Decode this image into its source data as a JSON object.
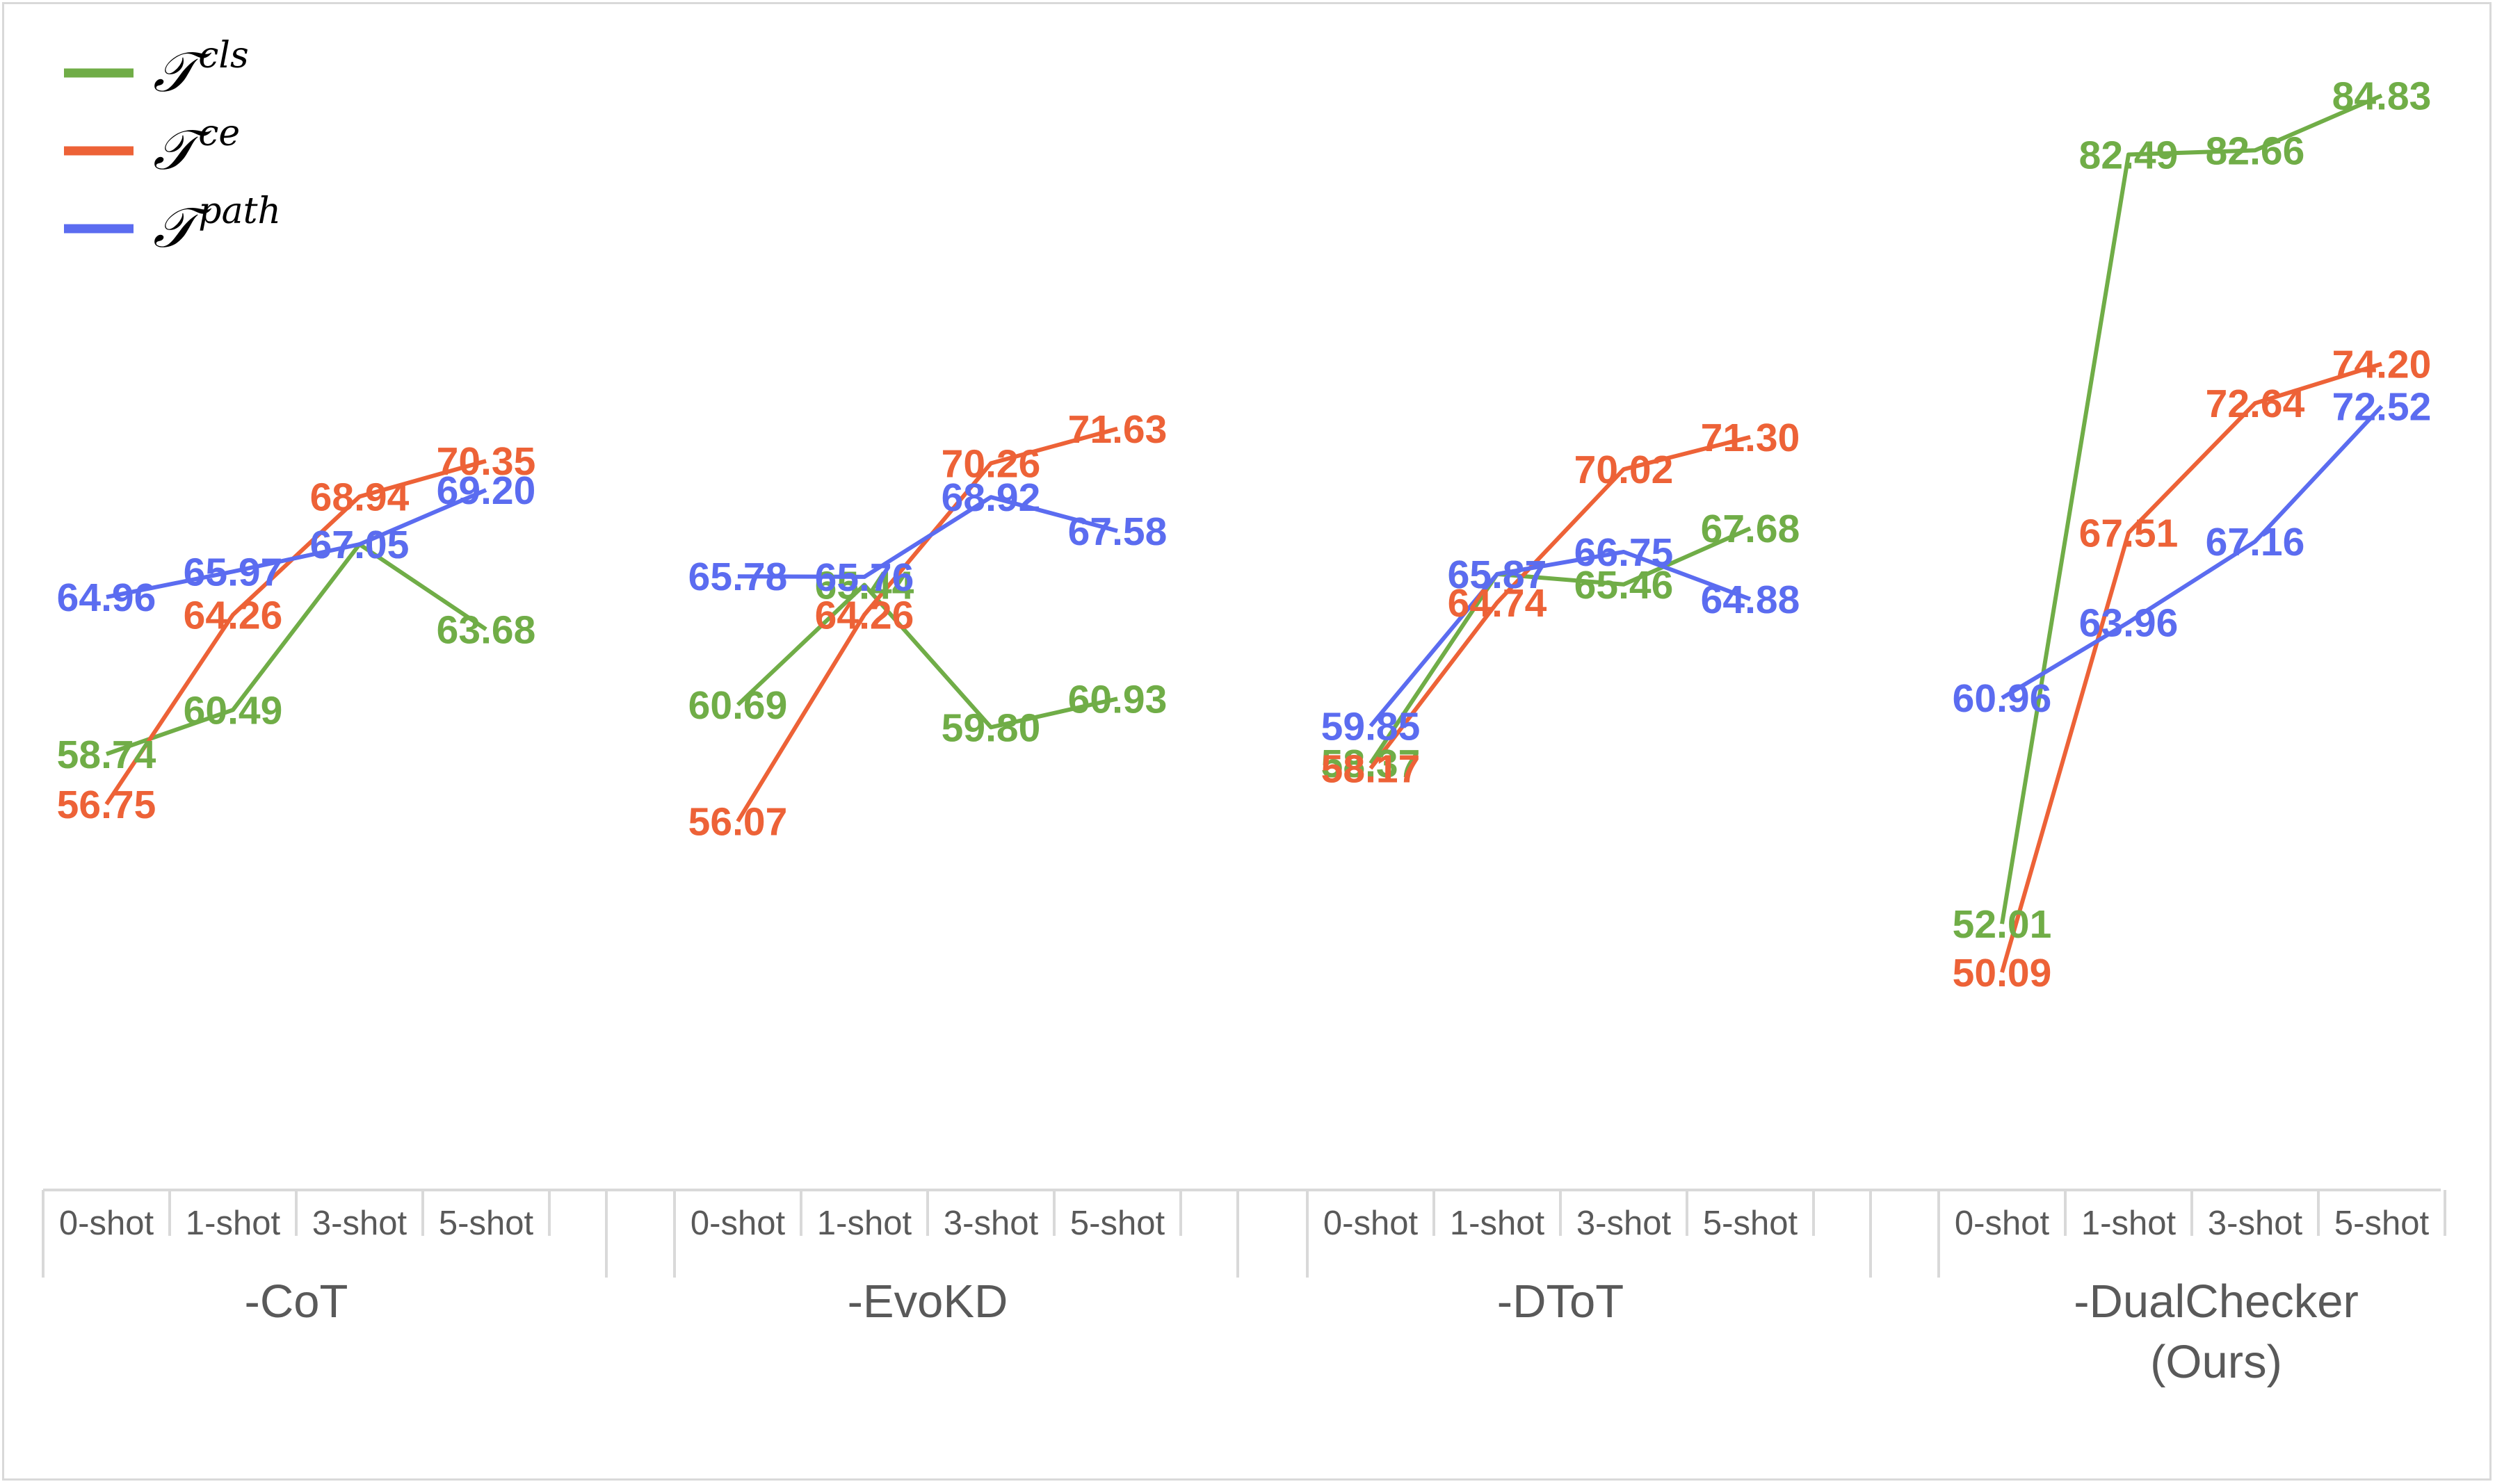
{
  "chart_data": {
    "type": "line",
    "title": "",
    "xlabel": "",
    "ylabel": "",
    "ylim": [
      44,
      86
    ],
    "grid": false,
    "legend_position": "top-left",
    "groups": [
      {
        "label": "-CoT",
        "categories": [
          "0-shot",
          "1-shot",
          "3-shot",
          "5-shot"
        ]
      },
      {
        "label": "-EvoKD",
        "categories": [
          "0-shot",
          "1-shot",
          "3-shot",
          "5-shot"
        ]
      },
      {
        "label": "-DToT",
        "categories": [
          "0-shot",
          "1-shot",
          "3-shot",
          "5-shot"
        ]
      },
      {
        "label": "-DualChecker\n(Ours)",
        "categories": [
          "0-shot",
          "1-shot",
          "3-shot",
          "5-shot"
        ]
      }
    ],
    "series": [
      {
        "name": "𝒯",
        "sup": "cls",
        "color": "#70ad47",
        "values": [
          [
            58.74,
            60.49,
            67.05,
            63.68
          ],
          [
            60.69,
            65.44,
            59.8,
            60.93
          ],
          [
            58.37,
            65.87,
            65.46,
            67.68
          ],
          [
            52.01,
            82.49,
            82.66,
            84.83
          ]
        ],
        "labels": [
          [
            "58.74",
            "60.49",
            "67.05",
            "63.68"
          ],
          [
            "60.69",
            "65.44",
            "59.80",
            "60.93"
          ],
          [
            "58.37",
            "65.87",
            "65.46",
            "67.68"
          ],
          [
            "52.01",
            "82.49",
            "82.66",
            "84.83"
          ]
        ]
      },
      {
        "name": "𝒯",
        "sup": "ce",
        "color": "#ed6237",
        "values": [
          [
            56.75,
            64.26,
            68.94,
            70.35
          ],
          [
            56.07,
            64.26,
            70.26,
            71.63
          ],
          [
            58.17,
            64.74,
            70.02,
            71.3
          ],
          [
            50.09,
            67.51,
            72.64,
            74.2
          ]
        ],
        "labels": [
          [
            "56.75",
            "64.26",
            "68.94",
            "70.35"
          ],
          [
            "56.07",
            "64.26",
            "70.26",
            "71.63"
          ],
          [
            "58.17",
            "64.74",
            "70.02",
            "71.30"
          ],
          [
            "50.09",
            "67.51",
            "72.64",
            "74.20"
          ]
        ]
      },
      {
        "name": "𝒯",
        "sup": "path",
        "color": "#5b6cf0",
        "values": [
          [
            64.96,
            65.97,
            67.05,
            69.2
          ],
          [
            65.78,
            65.76,
            68.92,
            67.58
          ],
          [
            59.85,
            65.87,
            66.75,
            64.88
          ],
          [
            60.96,
            63.96,
            67.16,
            72.52
          ]
        ],
        "labels": [
          [
            "64.96",
            "65.97",
            "67.05",
            "69.20"
          ],
          [
            "65.78",
            "65.76",
            "68.92",
            "67.58"
          ],
          [
            "59.85",
            "65.87",
            "66.75",
            "64.88"
          ],
          [
            "60.96",
            "63.96",
            "67.16",
            "72.52"
          ]
        ]
      }
    ]
  }
}
